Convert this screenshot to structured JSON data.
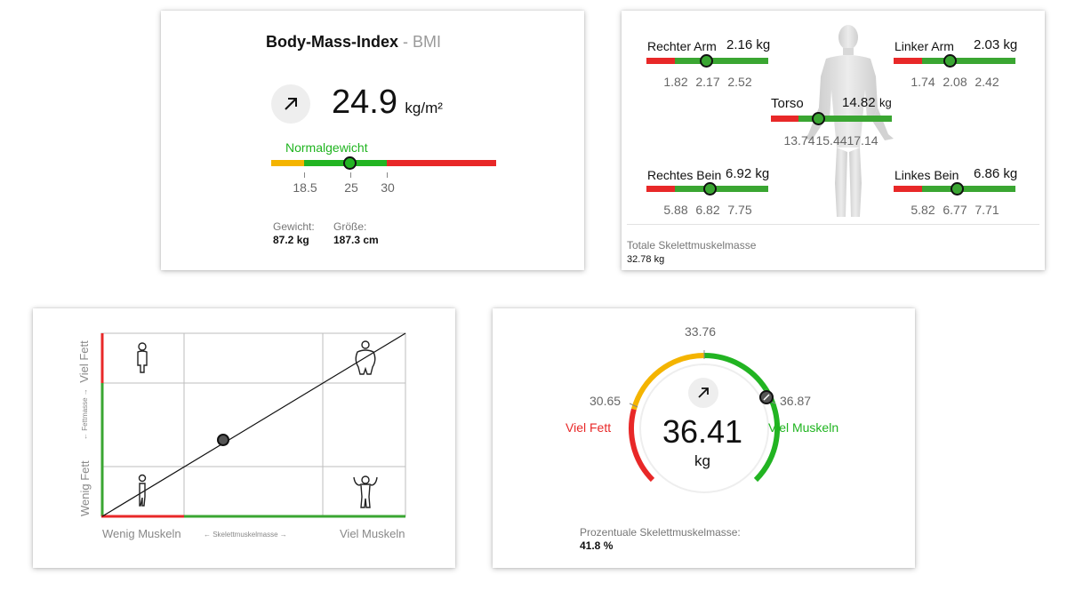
{
  "bmi": {
    "title": "Body-Mass-Index",
    "subtitle": "- BMI",
    "value": "24.9",
    "unit": "kg/m²",
    "status": "Normalgewicht",
    "ticks": [
      "18.5",
      "25",
      "30"
    ],
    "weight_label": "Gewicht:",
    "weight_value": "87.2 kg",
    "height_label": "Größe:",
    "height_value": "187.3 cm",
    "trend_icon": "arrow-up-right-icon",
    "colors": {
      "low": "#f4b400",
      "normal": "#22b422",
      "high": "#e82828"
    }
  },
  "segments": {
    "right_arm": {
      "label": "Rechter Arm",
      "value": "2.16 kg",
      "ticks": [
        "1.82",
        "2.17",
        "2.52"
      ]
    },
    "left_arm": {
      "label": "Linker Arm",
      "value": "2.03 kg",
      "ticks": [
        "1.74",
        "2.08",
        "2.42"
      ]
    },
    "torso": {
      "label": "Torso",
      "value": "14.82",
      "unit": "kg",
      "ticks": [
        "13.74",
        "15.44",
        "17.14"
      ]
    },
    "right_leg": {
      "label": "Rechtes Bein",
      "value": "6.92 kg",
      "ticks": [
        "5.88",
        "6.82",
        "7.75"
      ]
    },
    "left_leg": {
      "label": "Linkes Bein",
      "value": "6.86 kg",
      "ticks": [
        "5.82",
        "6.77",
        "7.71"
      ]
    },
    "total_label": "Totale Skelettmuskelmasse",
    "total_value": "32.78 kg"
  },
  "matrix": {
    "y_top": "Viel Fett",
    "y_mid": "← Fettmasse →",
    "y_bottom": "Wenig Fett",
    "x_left": "Wenig Muskeln",
    "x_mid": "← Skelettmuskelmasse →",
    "x_right": "Viel Muskeln",
    "icons": [
      "slim-person-icon",
      "heavy-person-icon",
      "thin-person-icon",
      "muscular-person-icon"
    ]
  },
  "gauge": {
    "value": "36.41",
    "unit": "kg",
    "top_tick": "33.76",
    "left_tick": "30.65",
    "right_tick": "36.87",
    "left_label": "Viel Fett",
    "right_label": "Viel Muskeln",
    "footer_label": "Prozentuale Skelettmuskelmasse:",
    "footer_value": "41.8 %",
    "trend_icon": "arrow-up-right-icon"
  }
}
